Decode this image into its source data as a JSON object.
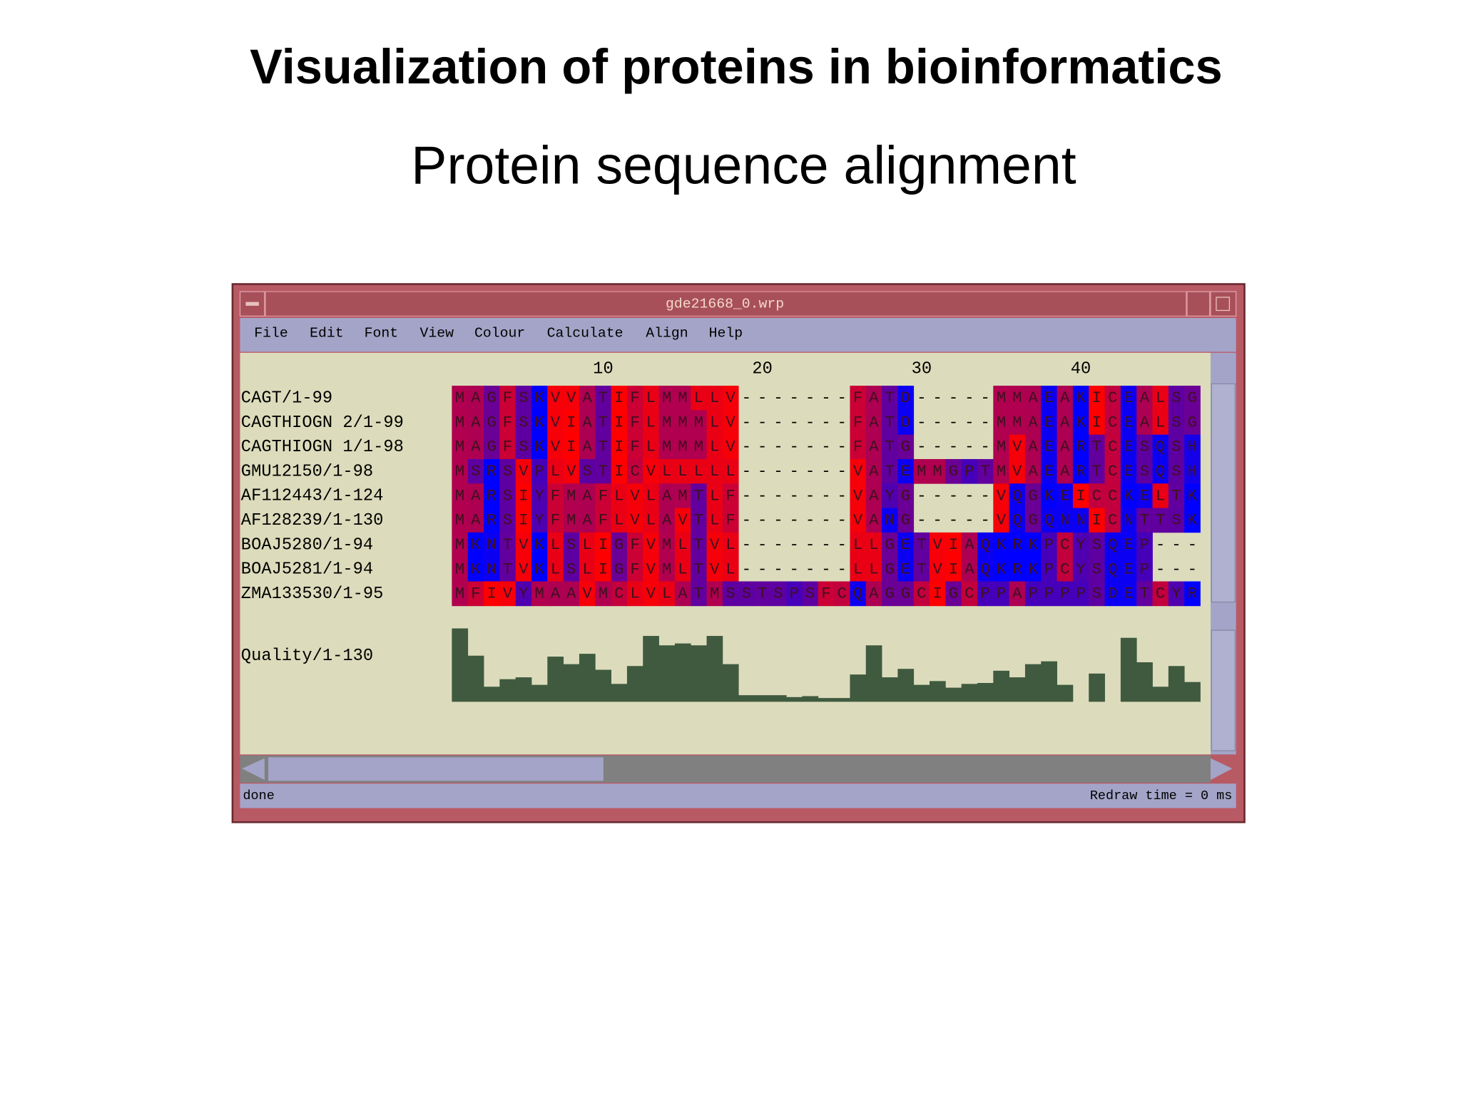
{
  "slide": {
    "title": "Visualization of proteins in bioinformatics",
    "subtitle": "Protein sequence alignment"
  },
  "window": {
    "title": "gde21668_0.wrp",
    "menu": [
      "File",
      "Edit",
      "Font",
      "View",
      "Colour",
      "Calculate",
      "Align",
      "Help"
    ],
    "ruler": [
      10,
      20,
      30,
      40
    ],
    "sequences": [
      {
        "name": "CAGT/1-99",
        "residues": "MAGFSKVVATIFLMMLLV-------FATD-----MMAEAKICEALSG"
      },
      {
        "name": "CAGTHIOGN 2/1-99",
        "residues": "MAGFSKVIATIFLMMMLV-------FATD-----MMAEAKICEALSG"
      },
      {
        "name": "CAGTHIOGN 1/1-98",
        "residues": "MAGFSKVIATIFLMMMLV-------FATG-----MVAEARTCESQSH"
      },
      {
        "name": "GMU12150/1-98",
        "residues": "MSRSVPLVSTICVLLLLL-------VATEMMGPTMVAEARTCESQSH"
      },
      {
        "name": "AF112443/1-124",
        "residues": "MARSIYFMAFLVLAMTLF-------VAYG-----VQGKEICCKELTK"
      },
      {
        "name": "AF128239/1-130",
        "residues": "MARSIYFMAFLVLAVTLF-------VANG-----VQGQNNICNTTSK"
      },
      {
        "name": "BOAJ5280/1-94",
        "residues": "MKNTVKLSLIGFVMLTVL-------LLGETVIAQKRKPCYSQEP---"
      },
      {
        "name": "BOAJ5281/1-94",
        "residues": "MKNTVKLSLIGFVMLTVL-------LLGETVIAQKRKPCYSQEP---"
      },
      {
        "name": "ZMA133530/1-95",
        "residues": "MFIVYMAAVMCLVLATMSSTSPSFCQAGGCIGCPPAPPPPSDETCYR"
      }
    ],
    "quality": {
      "name": "Quality/1-130",
      "values": [
        78,
        49,
        16,
        24,
        26,
        18,
        48,
        40,
        51,
        34,
        19,
        38,
        70,
        60,
        62,
        60,
        70,
        40,
        7,
        7,
        7,
        5,
        6,
        4,
        4,
        29,
        60,
        26,
        35,
        18,
        22,
        15,
        19,
        20,
        33,
        26,
        40,
        43,
        18,
        0,
        30,
        0,
        68,
        42,
        16,
        38,
        21
      ],
      "color": "#3f5a3f"
    },
    "residue_colors": {
      "I": "#ff0000",
      "V": "#f60009",
      "L": "#ea0015",
      "F": "#cb0034",
      "C": "#c2003d",
      "M": "#b0004f",
      "A": "#ad0052",
      "G": "#6a0095",
      "T": "#61009e",
      "S": "#5e00a1",
      "W": "#5b00a4",
      "Y": "#4f00b0",
      "P": "#4600b9",
      "H": "#1500ea",
      "E": "#0c00f3",
      "Q": "#0c00f3",
      "D": "#0c00f3",
      "N": "#0c00f3",
      "K": "#0000ff",
      "R": "#0000ff"
    },
    "status": "done",
    "redraw": "Redraw time = 0 ms"
  }
}
